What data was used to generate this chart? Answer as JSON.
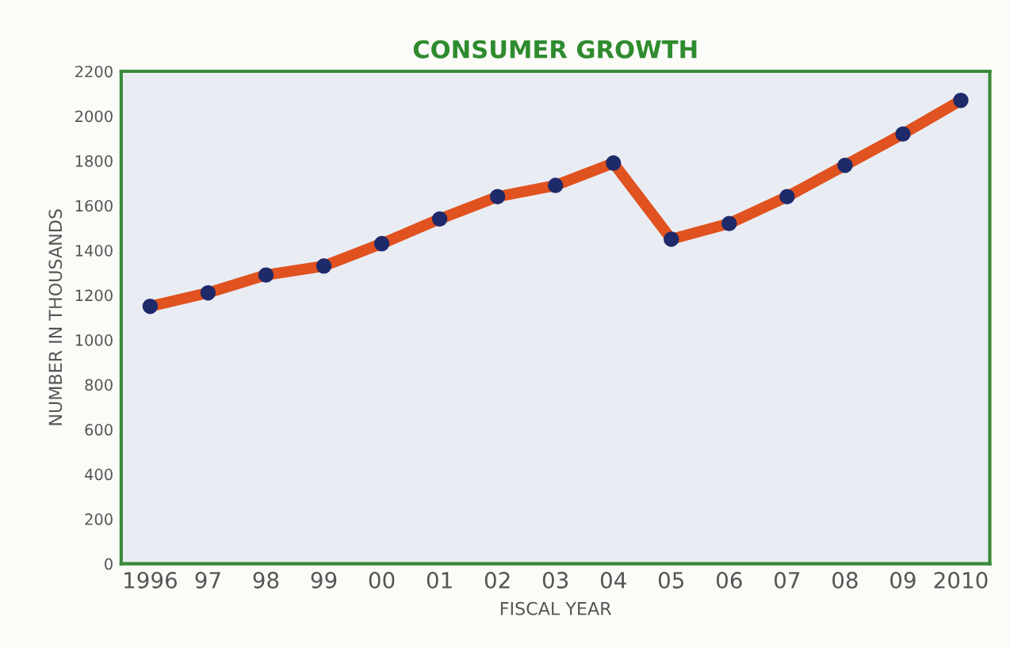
{
  "chart_data": {
    "type": "line",
    "title": "CONSUMER GROWTH",
    "xlabel": "FISCAL YEAR",
    "ylabel": "NUMBER IN THOUSANDS",
    "categories": [
      "1996",
      "97",
      "98",
      "99",
      "00",
      "01",
      "02",
      "03",
      "04",
      "05",
      "06",
      "07",
      "08",
      "09",
      "2010"
    ],
    "series": [
      {
        "color": "#e0521f",
        "values": [
          1150,
          1210,
          1290,
          1330,
          1430,
          1540,
          1640,
          1690,
          1790,
          1450,
          1520,
          1640,
          1780,
          1920,
          2070
        ]
      }
    ],
    "ylim": [
      0,
      2200
    ],
    "yticks": [
      0,
      200,
      400,
      600,
      800,
      1000,
      1200,
      1400,
      1600,
      1800,
      2000,
      2200
    ],
    "marker": "circle",
    "line_style": "solid",
    "grid": false
  }
}
